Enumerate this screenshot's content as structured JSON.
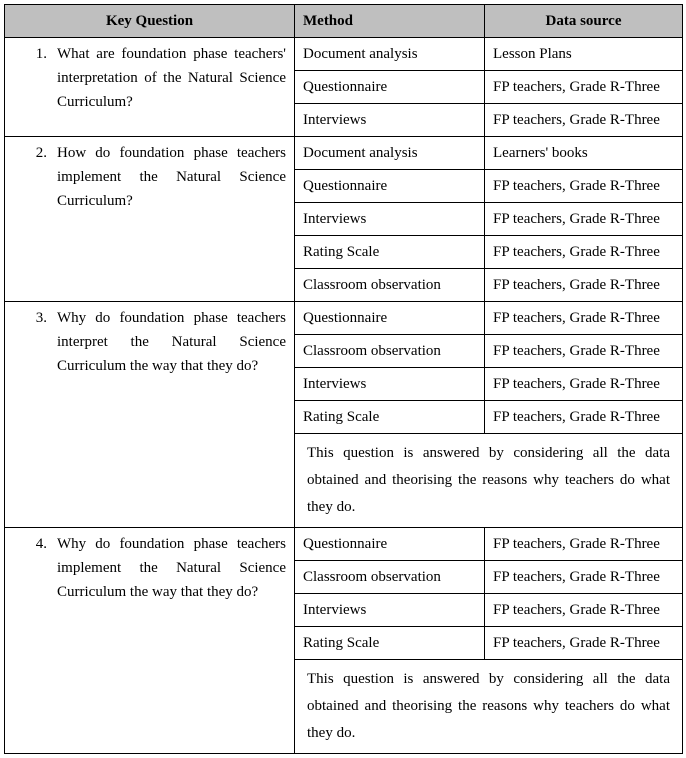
{
  "header": {
    "kq": "Key Question",
    "method": "Method",
    "source": "Data source"
  },
  "q1": {
    "num": "1.",
    "text": "What are foundation phase teachers' interpretation of the Natural Science Curriculum?",
    "rows": [
      {
        "method": "Document analysis",
        "source": "Lesson Plans"
      },
      {
        "method": "Questionnaire",
        "source": "FP teachers, Grade R-Three"
      },
      {
        "method": "Interviews",
        "source": "FP teachers, Grade R-Three"
      }
    ]
  },
  "q2": {
    "num": "2.",
    "text": "How do foundation phase teachers implement the Natural Science Curriculum?",
    "rows": [
      {
        "method": "Document analysis",
        "source": "Learners' books"
      },
      {
        "method": "Questionnaire",
        "source": "FP teachers, Grade R-Three"
      },
      {
        "method": "Interviews",
        "source": "FP teachers, Grade R-Three"
      },
      {
        "method": "Rating Scale",
        "source": " FP teachers, Grade R-Three"
      },
      {
        "method": "Classroom observation",
        "source": " FP teachers, Grade R-Three"
      }
    ]
  },
  "q3": {
    "num": "3.",
    "text": "Why do foundation phase teachers interpret the Natural Science Curriculum the way that they do?",
    "rows": [
      {
        "method": "Questionnaire",
        "source": " FP teachers, Grade R-Three"
      },
      {
        "method": "Classroom observation",
        "source": " FP teachers, Grade R-Three"
      },
      {
        "method": "Interviews",
        "source": " FP teachers, Grade R-Three"
      },
      {
        "method": "Rating Scale",
        "source": " FP teachers, Grade R-Three"
      }
    ],
    "note": "This question is answered by considering all the data obtained and theorising the reasons why teachers do what they do."
  },
  "q4": {
    "num": "4.",
    "text": "Why do foundation phase teachers implement the Natural Science Curriculum the way that they do?",
    "rows": [
      {
        "method": "Questionnaire",
        "source": "FP teachers, Grade R-Three"
      },
      {
        "method": "Classroom observation",
        "source": "FP teachers, Grade R-Three"
      },
      {
        "method": "Interviews",
        "source": "FP teachers, Grade R-Three"
      },
      {
        "method": "Rating Scale",
        "source": " FP teachers, Grade R-Three"
      }
    ],
    "note": "This question is answered by considering all the data obtained and theorising the reasons why teachers do what they do."
  }
}
